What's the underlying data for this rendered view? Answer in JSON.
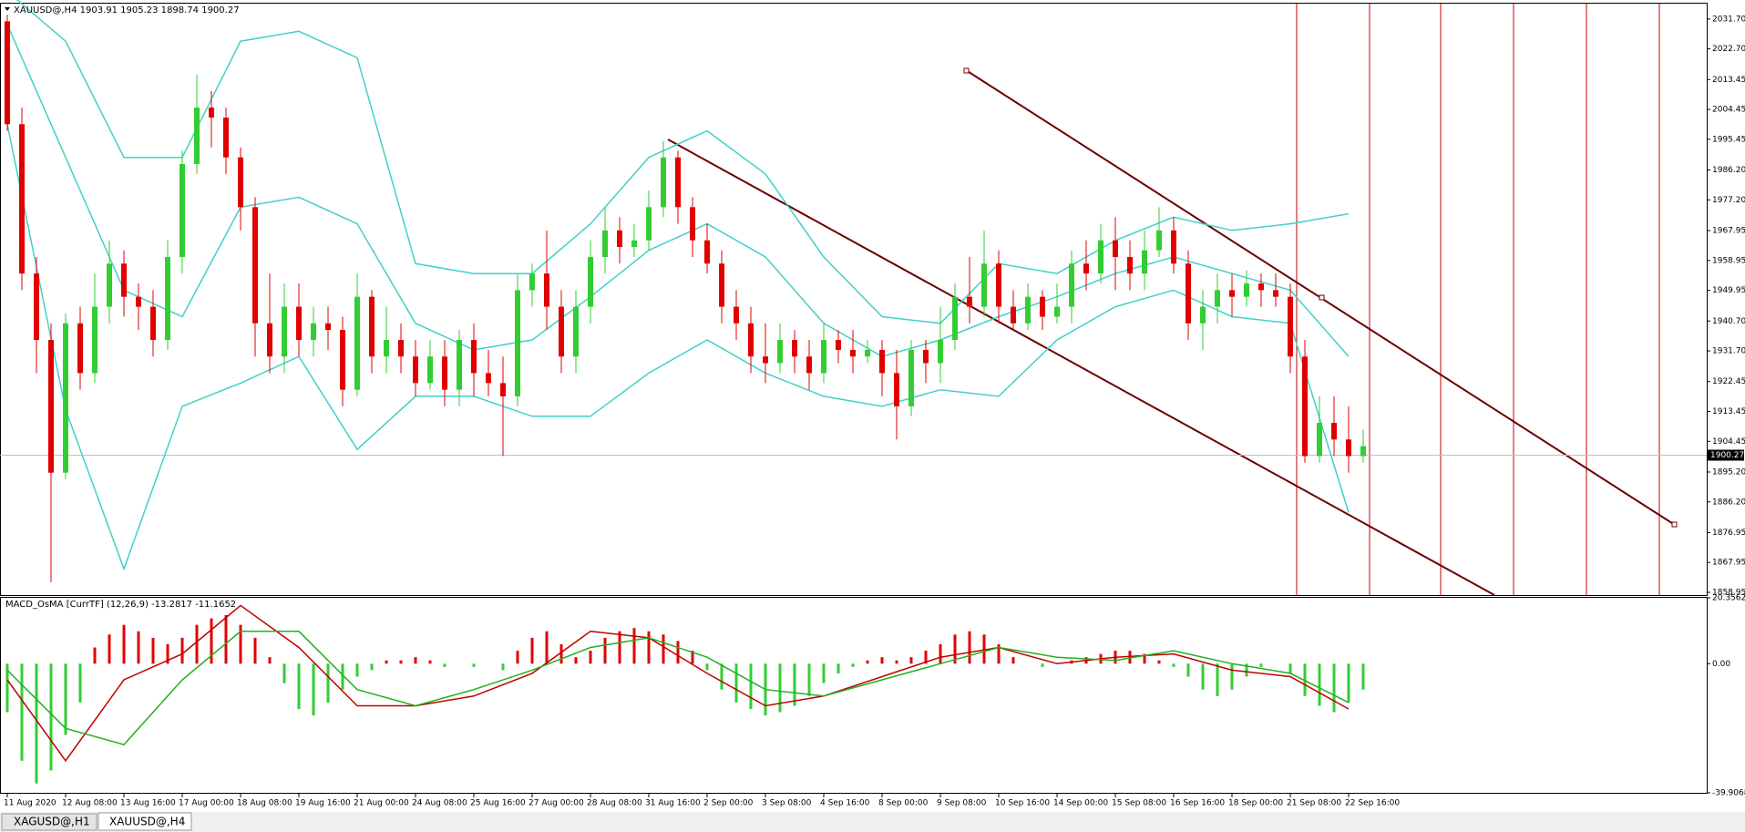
{
  "chart_data": [
    {
      "type": "candlestick",
      "title": "XAUUSD@,H4  1903.91 1905.23 1898.74 1900.27",
      "open": [
        2031,
        2000,
        1955,
        1935,
        1895,
        1940,
        1925,
        1945,
        1958,
        1948,
        1945,
        1935,
        1960,
        1988,
        2005,
        2002,
        1990,
        1975,
        1940,
        1930,
        1945,
        1935,
        1940,
        1938,
        1920,
        1948,
        1930,
        1935,
        1930,
        1922,
        1930,
        1920,
        1935,
        1925,
        1922,
        1918,
        1950,
        1955,
        1945,
        1930,
        1945,
        1960,
        1968,
        1963,
        1965,
        1975,
        1990,
        1975,
        1965,
        1958,
        1945,
        1940,
        1930,
        1928,
        1935,
        1930,
        1925,
        1935,
        1932,
        1930,
        1932,
        1925,
        1915,
        1932,
        1928,
        1935,
        1948,
        1945,
        1958,
        1945,
        1940,
        1948,
        1942,
        1945,
        1958,
        1955,
        1965,
        1960,
        1955,
        1962,
        1968,
        1958,
        1940,
        1945,
        1950,
        1948,
        1952,
        1950,
        1948,
        1930,
        1900,
        1910,
        1905,
        1900
      ],
      "high": [
        2033,
        2005,
        1960,
        1940,
        1943,
        1945,
        1955,
        1965,
        1962,
        1952,
        1950,
        1965,
        1992,
        2015,
        2010,
        2005,
        1993,
        1978,
        1955,
        1952,
        1952,
        1945,
        1945,
        1942,
        1955,
        1950,
        1945,
        1940,
        1935,
        1935,
        1935,
        1938,
        1940,
        1932,
        1930,
        1955,
        1958,
        1968,
        1950,
        1950,
        1965,
        1975,
        1972,
        1970,
        1980,
        1995,
        1992,
        1978,
        1970,
        1962,
        1950,
        1945,
        1940,
        1940,
        1938,
        1935,
        1940,
        1938,
        1938,
        1935,
        1935,
        1932,
        1935,
        1935,
        1945,
        1952,
        1960,
        1968,
        1962,
        1950,
        1952,
        1950,
        1952,
        1962,
        1965,
        1970,
        1972,
        1965,
        1968,
        1975,
        1972,
        1962,
        1950,
        1955,
        1955,
        1956,
        1955,
        1955,
        1952,
        1935,
        1918,
        1918,
        1915,
        1908
      ],
      "low": [
        1998,
        1950,
        1925,
        1862,
        1893,
        1920,
        1922,
        1940,
        1942,
        1938,
        1930,
        1932,
        1955,
        1985,
        1993,
        1985,
        1968,
        1930,
        1925,
        1925,
        1930,
        1930,
        1932,
        1915,
        1918,
        1925,
        1925,
        1925,
        1918,
        1920,
        1915,
        1915,
        1918,
        1918,
        1900,
        1915,
        1945,
        1938,
        1925,
        1925,
        1940,
        1955,
        1958,
        1960,
        1962,
        1972,
        1970,
        1960,
        1955,
        1940,
        1935,
        1925,
        1922,
        1925,
        1925,
        1920,
        1922,
        1928,
        1925,
        1928,
        1918,
        1905,
        1912,
        1922,
        1922,
        1932,
        1940,
        1942,
        1940,
        1938,
        1938,
        1938,
        1940,
        1940,
        1950,
        1952,
        1950,
        1950,
        1950,
        1960,
        1955,
        1935,
        1932,
        1940,
        1942,
        1945,
        1945,
        1945,
        1925,
        1898,
        1898,
        1900,
        1895,
        1898
      ],
      "close": [
        2000,
        1955,
        1935,
        1895,
        1940,
        1925,
        1945,
        1958,
        1948,
        1945,
        1935,
        1960,
        1988,
        2005,
        2002,
        1990,
        1975,
        1940,
        1930,
        1945,
        1935,
        1940,
        1938,
        1920,
        1948,
        1930,
        1935,
        1930,
        1922,
        1930,
        1920,
        1935,
        1925,
        1922,
        1918,
        1950,
        1955,
        1945,
        1930,
        1945,
        1960,
        1968,
        1963,
        1965,
        1975,
        1990,
        1975,
        1965,
        1958,
        1945,
        1940,
        1930,
        1928,
        1935,
        1930,
        1925,
        1935,
        1932,
        1930,
        1932,
        1925,
        1915,
        1932,
        1928,
        1935,
        1948,
        1945,
        1958,
        1945,
        1940,
        1948,
        1942,
        1945,
        1958,
        1955,
        1965,
        1960,
        1955,
        1962,
        1968,
        1958,
        1940,
        1945,
        1950,
        1948,
        1952,
        1950,
        1948,
        1930,
        1900,
        1910,
        1905,
        1900,
        1903
      ],
      "up_color": "#32cd32",
      "down_color": "#e00000",
      "lines": [
        {
          "color": "#40d0c8",
          "values": [
            2040,
            2025,
            1990,
            1990,
            2025,
            2028,
            2020,
            1958,
            1955,
            1955,
            1970,
            1990,
            1998,
            1985,
            1960,
            1942,
            1940,
            1958,
            1955,
            1965,
            1972,
            1968,
            1970,
            1973
          ]
        },
        {
          "color": "#40d0c8",
          "values": [
            2030,
            1990,
            1950,
            1942,
            1975,
            1978,
            1970,
            1940,
            1932,
            1935,
            1948,
            1962,
            1970,
            1960,
            1940,
            1930,
            1935,
            1942,
            1948,
            1955,
            1960,
            1955,
            1950,
            1930
          ]
        },
        {
          "color": "#40d0c8",
          "values": [
            2000,
            1914,
            1866,
            1915,
            1922,
            1930,
            1902,
            1918,
            1918,
            1912,
            1912,
            1925,
            1935,
            1925,
            1918,
            1915,
            1920,
            1918,
            1935,
            1945,
            1950,
            1942,
            1940,
            1883
          ]
        }
      ],
      "last_price": 1900.27,
      "ylim": [
        1858.4,
        2036.05
      ],
      "yticks": [
        {
          "value": 2031.7,
          "label": "2031.70"
        },
        {
          "value": 2022.7,
          "label": "2022.70"
        },
        2013.45,
        2004.45,
        1995.45,
        {
          "value": 1986.2,
          "label": "1986.20"
        },
        {
          "value": 1977.2,
          "label": "1977.20"
        },
        1967.95,
        1958.95,
        1949.95,
        {
          "value": 1940.7,
          "label": "1940.70"
        },
        {
          "value": 1931.7,
          "label": "1931.70"
        },
        1922.45,
        1913.45,
        1904.45,
        {
          "value": 1895.2,
          "label": "1895.20"
        },
        {
          "value": 1886.2,
          "label": "1886.20"
        },
        1876.95,
        1867.95,
        1858.95
      ],
      "x_labels": [
        "11 Aug 2020",
        "12 Aug 08:00",
        "13 Aug 16:00",
        "17 Aug 00:00",
        "18 Aug 08:00",
        "19 Aug 16:00",
        "21 Aug 00:00",
        "24 Aug 08:00",
        "25 Aug 16:00",
        "27 Aug 00:00",
        "28 Aug 08:00",
        "31 Aug 16:00",
        "2 Sep 00:00",
        "3 Sep 08:00",
        "4 Sep 16:00",
        "8 Sep 00:00",
        "9 Sep 08:00",
        "10 Sep 16:00",
        "14 Sep 00:00",
        "15 Sep 08:00",
        "16 Sep 16:00",
        "18 Sep 00:00",
        "21 Sep 08:00",
        "22 Sep 16:00"
      ]
    },
    {
      "type": "histogram_macd",
      "title": "MACD_OsMA [CurrTF] (12,26,9) -13.2817 -11.1652",
      "values": [
        -15,
        -30,
        -37,
        -33,
        -22,
        -12,
        5,
        9,
        12,
        10,
        8,
        6,
        8,
        12,
        14,
        15,
        12,
        8,
        2,
        -6,
        -14,
        -16,
        -12,
        -8,
        -4,
        -2,
        1,
        1,
        2,
        1,
        -1,
        0,
        -1,
        0,
        -2,
        4,
        8,
        10,
        6,
        2,
        4,
        8,
        10,
        11,
        10,
        9,
        7,
        4,
        -2,
        -8,
        -12,
        -14,
        -16,
        -15,
        -13,
        -10,
        -6,
        -3,
        -1,
        1,
        2,
        1,
        2,
        4,
        6,
        9,
        10,
        9,
        6,
        2,
        0,
        -1,
        0,
        1,
        2,
        3,
        4,
        4,
        3,
        1,
        -1,
        -4,
        -8,
        -10,
        -8,
        -4,
        -1,
        0,
        -3,
        -10,
        -13,
        -15,
        -12,
        -8
      ],
      "positive_color": "#e00000",
      "negative_color": "#32cd32",
      "lines": [
        {
          "color": "#c00000",
          "values": [
            -5,
            -30,
            -5,
            3,
            18,
            5,
            -13,
            -13,
            -10,
            -3,
            10,
            8,
            -3,
            -13,
            -10,
            -4,
            2,
            5,
            0,
            2,
            3,
            -2,
            -4,
            -14
          ]
        },
        {
          "color": "#20b020",
          "values": [
            -2,
            -20,
            -25,
            -5,
            10,
            10,
            -8,
            -13,
            -8,
            -2,
            5,
            8,
            2,
            -8,
            -10,
            -5,
            0,
            5,
            2,
            1,
            4,
            0,
            -3,
            -12
          ]
        }
      ],
      "ylim": [
        -39.9068,
        20.3562
      ],
      "yticks": [
        20.3562,
        {
          "value": 0,
          "label": "0.00"
        },
        -39.9068
      ]
    }
  ],
  "tabs": [
    "XAGUSD@,H1",
    "XAUUSD@,H4"
  ]
}
